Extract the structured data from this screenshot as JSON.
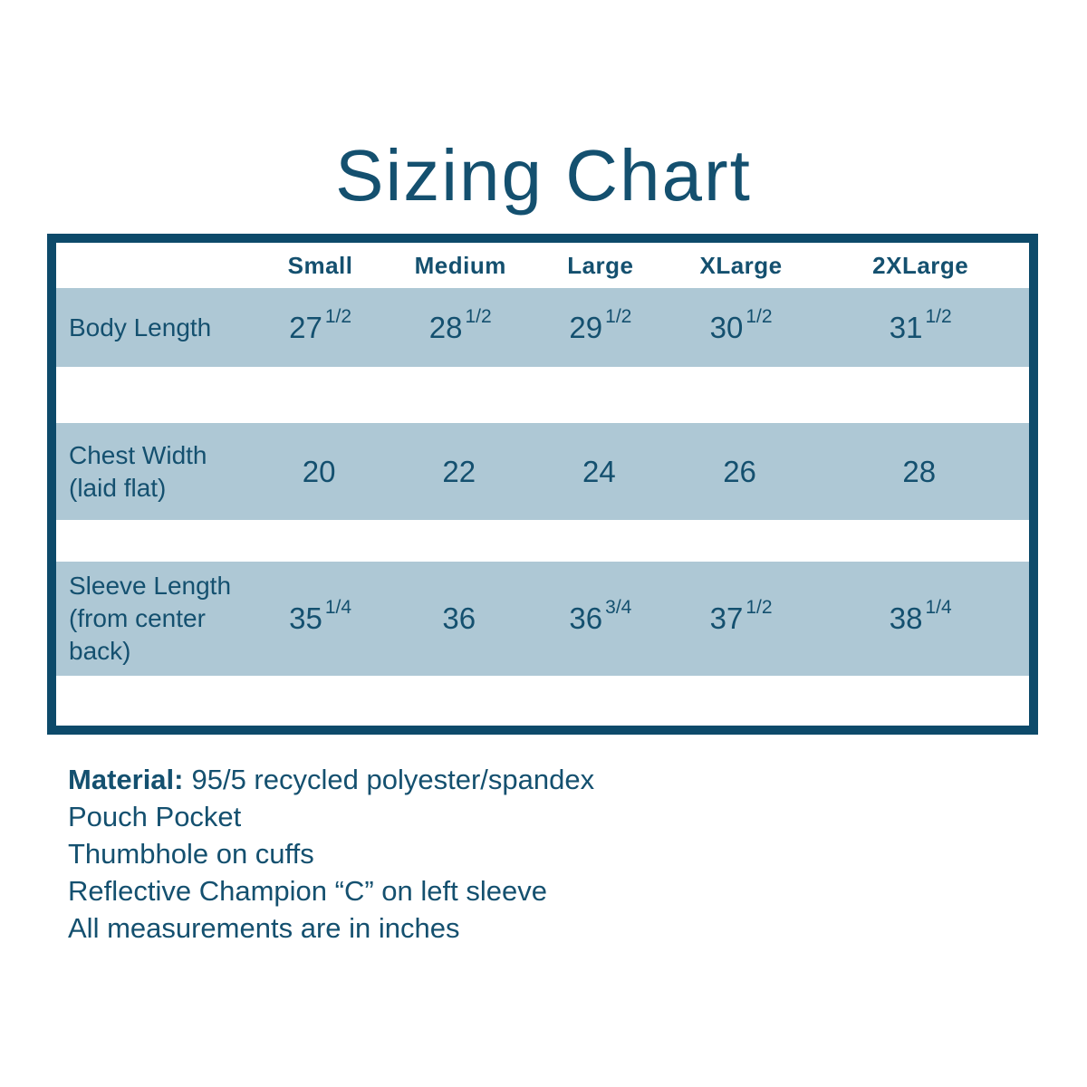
{
  "title": "Sizing Chart",
  "colors": {
    "text_teal": "#14506F",
    "border_teal": "#0D4A6A",
    "row_blue": "#AEC8D5",
    "background": "#FFFFFF"
  },
  "table": {
    "header": [
      "Small",
      "Medium",
      "Large",
      "XLarge",
      "2XLarge"
    ],
    "rows": [
      {
        "label": "Body Length",
        "values": [
          {
            "n": "27",
            "f": "1/2"
          },
          {
            "n": "28",
            "f": "1/2"
          },
          {
            "n": "29",
            "f": "1/2"
          },
          {
            "n": "30",
            "f": "1/2"
          },
          {
            "n": "31",
            "f": "1/2"
          }
        ]
      },
      {
        "label": "Chest Width (laid flat)",
        "values": [
          {
            "n": "20",
            "f": ""
          },
          {
            "n": "22",
            "f": ""
          },
          {
            "n": "24",
            "f": ""
          },
          {
            "n": "26",
            "f": ""
          },
          {
            "n": "28",
            "f": ""
          }
        ]
      },
      {
        "label": "Sleeve Length (from center back)",
        "values": [
          {
            "n": "35",
            "f": "1/4"
          },
          {
            "n": "36",
            "f": ""
          },
          {
            "n": "36",
            "f": "3/4"
          },
          {
            "n": "37",
            "f": "1/2"
          },
          {
            "n": "38",
            "f": "1/4"
          }
        ]
      }
    ]
  },
  "notes": {
    "material_label": "Material:",
    "material_text": "95/5 recycled polyester/spandex",
    "extra_lines": [
      "Pouch Pocket",
      "Thumbhole on cuffs",
      "Reflective Champion “C” on left sleeve",
      "All measurements are in inches"
    ]
  }
}
